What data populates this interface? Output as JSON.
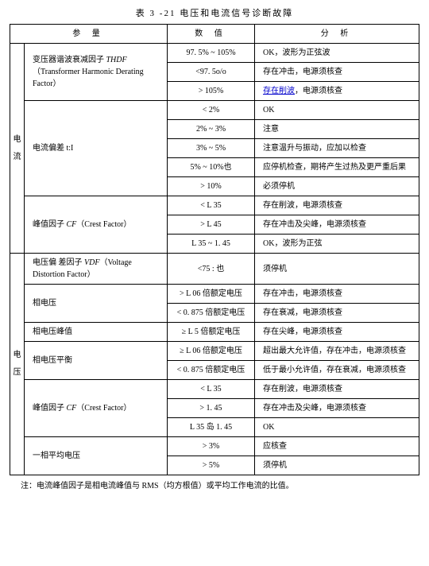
{
  "title": "表 3 -21  电压和电流信号诊断故障",
  "headers": {
    "param": "参 量",
    "value": "数 值",
    "analysis": "分 析"
  },
  "vlabels": {
    "current": [
      "电",
      "流"
    ],
    "voltage": [
      "电",
      "压"
    ]
  },
  "rows": {
    "thdf_label_pre": "变压器谐波衰减因子 ",
    "thdf_abbr": "THDF",
    "thdf_label_post": "（Transformer Harmonic Derating Factor）",
    "thdf_v1": "97. 5% ~ 105%",
    "thdf_a1": "OK，波形为正弦波",
    "thdf_v2": "<97. 5o/o",
    "thdf_a2": "存在冲击，电源须核查",
    "thdf_v3": "> 105%",
    "thdf_a3a": "存在削波",
    "thdf_a3b": "，电源须核查",
    "tI_label": "电流偏差 t:I",
    "tI_v1": "< 2%",
    "tI_a1": "OK",
    "tI_v2": "2% ~ 3%",
    "tI_a2": "注意",
    "tI_v3": "3% ~ 5%",
    "tI_a3": "注意温升与振动，应加以检查",
    "tI_v4": "5% ~ 10%也",
    "tI_a4": "应停机检查，期将产生过热及更严重后果",
    "tI_v5": "> 10%",
    "tI_a5": "必须停机",
    "cfI_label_pre": "峰值因子 ",
    "cfI_abbr": "CF",
    "cfI_label_post": "（Crest Factor）",
    "cfI_v1": "< L 35",
    "cfI_a1": "存在削波，电源须核查",
    "cfI_v2": "> L 45",
    "cfI_a2": "存在冲击及尖峰，电源须核查",
    "cfI_v3": "L 35 ~ 1. 45",
    "cfI_a3": "OK，波形为正弦",
    "vdf_label_pre": "电压偏 差因子 ",
    "vdf_abbr": "VDF",
    "vdf_label_post": "（Voltage Distortion Factor）",
    "vdf_v1": "<75 : 也",
    "vdf_a1": "须停机",
    "phv_label": "相电压",
    "phv_v1": "> L 06 倍额定电压",
    "phv_a1": "存在冲击，电源须核查",
    "phv_v2": "< 0. 875 倍额定电压",
    "phv_a2": "存在衰减，电源须核查",
    "phvp_label": "相电压峰值",
    "phvp_v1": "≥ L 5 倍额定电压",
    "phvp_a1": "存在尖峰，电源须核查",
    "phvb_label": "相电压平衡",
    "phvb_v1": "≥ L 06 倍额定电压",
    "phvb_a1": "超出最大允许值，存在冲击，电源须核查",
    "phvb_v2": "< 0. 875 倍额定电压",
    "phvb_a2": "低于最小允许值，存在衰减，电源须核查",
    "cfV_label_pre": "峰值因子 ",
    "cfV_abbr": "CF",
    "cfV_label_post": "（Crest Factor）",
    "cfV_v1": "< L 35",
    "cfV_a1": "存在削波，电源须核查",
    "cfV_v2": "> 1. 45",
    "cfV_a2": "存在冲击及尖峰，电源须核查",
    "cfV_v3": "L 35 岛 1. 45",
    "cfV_a3": "OK",
    "avg_label": "一相平均电压",
    "avg_v1": "> 3%",
    "avg_a1": "应核查",
    "avg_v2": "> 5%",
    "avg_a2": "须停机"
  },
  "footnote": "注：电流峰值因子是相电流峰值与 RMS（均方根值）或平均工作电流的比值。"
}
